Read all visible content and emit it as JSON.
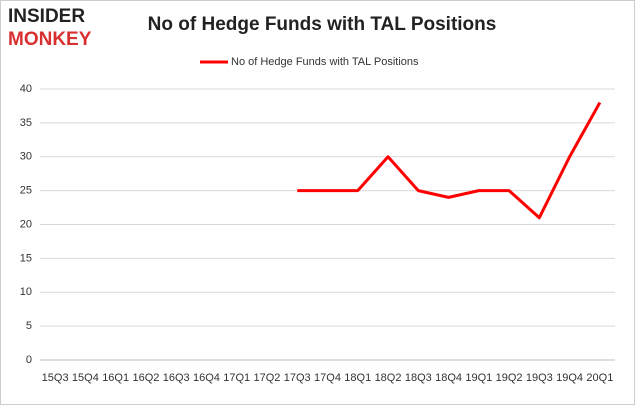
{
  "logo": {
    "line1": "INSIDER",
    "line2": "MONKEY"
  },
  "chart_data": {
    "type": "line",
    "title": "No of Hedge Funds with TAL Positions",
    "categories": [
      "15Q3",
      "15Q4",
      "16Q1",
      "16Q2",
      "16Q3",
      "16Q4",
      "17Q1",
      "17Q2",
      "17Q3",
      "17Q4",
      "18Q1",
      "18Q2",
      "18Q3",
      "18Q4",
      "19Q1",
      "19Q2",
      "19Q3",
      "19Q4",
      "20Q1"
    ],
    "series": [
      {
        "name": "No of Hedge Funds with TAL Positions",
        "color": "#ff0000",
        "values": [
          null,
          null,
          null,
          null,
          null,
          null,
          null,
          null,
          25,
          25,
          25,
          30,
          25,
          24,
          25,
          25,
          21,
          30,
          38
        ]
      }
    ],
    "ylim": [
      0,
      40
    ],
    "yticks": [
      0,
      5,
      10,
      15,
      20,
      25,
      30,
      35,
      40
    ],
    "grid": true,
    "legend": "top"
  }
}
